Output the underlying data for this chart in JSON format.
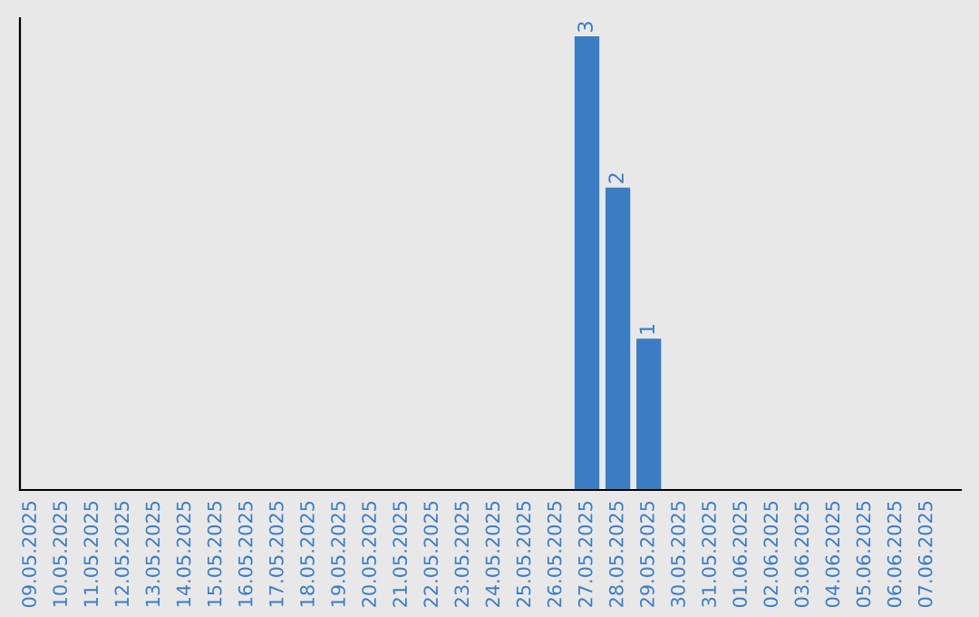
{
  "chart_data": {
    "type": "bar",
    "categories": [
      "09.05.2025",
      "10.05.2025",
      "11.05.2025",
      "12.05.2025",
      "13.05.2025",
      "14.05.2025",
      "15.05.2025",
      "16.05.2025",
      "17.05.2025",
      "18.05.2025",
      "19.05.2025",
      "20.05.2025",
      "21.05.2025",
      "22.05.2025",
      "23.05.2025",
      "24.05.2025",
      "25.05.2025",
      "26.05.2025",
      "27.05.2025",
      "28.05.2025",
      "29.05.2025",
      "30.05.2025",
      "31.05.2025",
      "01.06.2025",
      "02.06.2025",
      "03.06.2025",
      "04.06.2025",
      "05.06.2025",
      "06.06.2025",
      "07.06.2025"
    ],
    "values": [
      null,
      null,
      null,
      null,
      null,
      null,
      null,
      null,
      null,
      null,
      null,
      null,
      null,
      null,
      null,
      null,
      null,
      null,
      3,
      2,
      1,
      null,
      null,
      null,
      null,
      null,
      null,
      null,
      null,
      null
    ],
    "data_labels": true,
    "color": "#3a7dc2",
    "ylim": [
      0,
      3.12
    ],
    "tick_labels": "x",
    "grid": false,
    "legend": false
  }
}
